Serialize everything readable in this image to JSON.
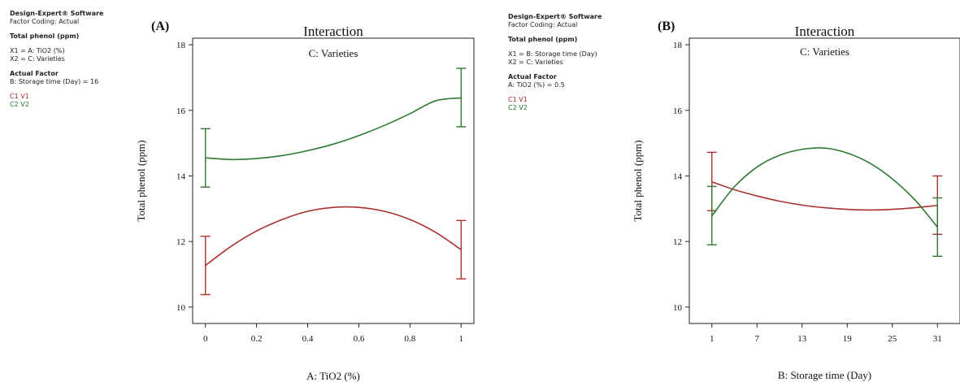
{
  "colors": {
    "series1": "#a9322e",
    "series2": "#2f7a33",
    "axis": "#222222"
  },
  "panels": [
    {
      "software": "Design-Expert® Software",
      "coding": "Factor Coding: Actual",
      "response": "Total phenol (ppm)",
      "x1": "X1 = A: TiO2 (%)",
      "x2": "X2 = C: Varieties",
      "actual_factor_title": "Actual Factor",
      "actual_factor": "B: Storage time (Day) = 16",
      "legend": [
        "C1 V1",
        "C2 V2"
      ]
    },
    {
      "software": "Design-Expert® Software",
      "coding": "Factor Coding: Actual",
      "response": "Total phenol (ppm)",
      "x1": "X1 = B: Storage time (Day)",
      "x2": "X2 = C: Varieties",
      "actual_factor_title": "Actual Factor",
      "actual_factor": "A: TiO2 (%) = 0.5",
      "legend": [
        "C1 V1",
        "C2 V2"
      ]
    }
  ],
  "chart_data": [
    {
      "type": "line",
      "panel_label": "(A)",
      "title": "Interaction",
      "subtitle": "C: Varieties",
      "xlabel": "A: TiO2 (%)",
      "ylabel": "Total phenol (ppm)",
      "xlim": [
        -0.05,
        1.05
      ],
      "ylim": [
        9.5,
        18.2
      ],
      "xticks": [
        0,
        0.2,
        0.4,
        0.6,
        0.8,
        1
      ],
      "xticklabels": [
        "0",
        "0.2",
        "0.4",
        "0.6",
        "0.8",
        "1"
      ],
      "yticks": [
        10,
        12,
        14,
        16,
        18
      ],
      "yticklabels": [
        "10",
        "12",
        "14",
        "16",
        "18"
      ],
      "grid": false,
      "series": [
        {
          "name": "C1 V1",
          "x": [
            0,
            0.1,
            0.2,
            0.3,
            0.4,
            0.5,
            0.6,
            0.7,
            0.8,
            0.9,
            1
          ],
          "y": [
            11.27,
            11.85,
            12.32,
            12.67,
            12.92,
            13.04,
            13.04,
            12.92,
            12.67,
            12.28,
            11.75
          ],
          "error_bars": [
            {
              "x": 0,
              "low": 10.38,
              "high": 12.16
            },
            {
              "x": 1,
              "low": 10.86,
              "high": 12.64
            }
          ]
        },
        {
          "name": "C2 V2",
          "x": [
            0,
            0.1,
            0.2,
            0.3,
            0.4,
            0.5,
            0.6,
            0.7,
            0.8,
            0.9,
            1
          ],
          "y": [
            14.55,
            14.5,
            14.53,
            14.62,
            14.77,
            14.97,
            15.23,
            15.54,
            15.9,
            16.29,
            16.38
          ],
          "error_bars": [
            {
              "x": 0,
              "low": 13.66,
              "high": 15.44
            },
            {
              "x": 1,
              "low": 15.5,
              "high": 17.28
            }
          ]
        }
      ]
    },
    {
      "type": "line",
      "panel_label": "(B)",
      "title": "Interaction",
      "subtitle": "C: Varieties",
      "xlabel": "B: Storage time (Day)",
      "ylabel": "Total phenol (ppm)",
      "xlim": [
        -2,
        34
      ],
      "ylim": [
        9.5,
        18.2
      ],
      "xticks": [
        1,
        7,
        13,
        19,
        25,
        31
      ],
      "xticklabels": [
        "1",
        "7",
        "13",
        "19",
        "25",
        "31"
      ],
      "yticks": [
        10,
        12,
        14,
        16,
        18
      ],
      "yticklabels": [
        "10",
        "12",
        "14",
        "16",
        "18"
      ],
      "grid": false,
      "series": [
        {
          "name": "C1 V1",
          "x": [
            1,
            4,
            7,
            10,
            13,
            16,
            19,
            22,
            25,
            28,
            31
          ],
          "y": [
            13.82,
            13.58,
            13.39,
            13.23,
            13.11,
            13.03,
            12.98,
            12.96,
            12.98,
            13.03,
            13.1
          ],
          "error_bars": [
            {
              "x": 1,
              "low": 12.94,
              "high": 14.72
            },
            {
              "x": 31,
              "low": 12.22,
              "high": 14.0
            }
          ]
        },
        {
          "name": "C2 V2",
          "x": [
            1,
            4,
            7,
            10,
            13,
            16,
            19,
            22,
            25,
            28,
            31
          ],
          "y": [
            12.78,
            13.67,
            14.27,
            14.63,
            14.81,
            14.85,
            14.7,
            14.39,
            13.91,
            13.27,
            12.44
          ],
          "error_bars": [
            {
              "x": 1,
              "low": 11.9,
              "high": 13.68
            },
            {
              "x": 31,
              "low": 11.55,
              "high": 13.33
            }
          ]
        }
      ]
    }
  ]
}
